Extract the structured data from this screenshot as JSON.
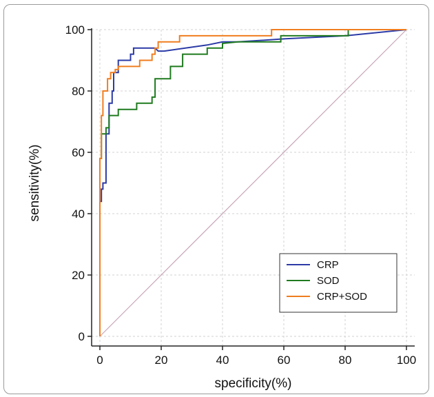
{
  "chart_data": {
    "type": "line",
    "xlabel": "specificity(%)",
    "ylabel": "sensitivity(%)",
    "xlim": [
      0,
      100
    ],
    "ylim": [
      0,
      100
    ],
    "x_ticks": [
      0,
      20,
      40,
      60,
      80,
      100
    ],
    "y_ticks": [
      0,
      20,
      40,
      60,
      80,
      100
    ],
    "grid": true,
    "legend_position": "bottom-right",
    "reference_line": {
      "from": [
        0,
        0
      ],
      "to": [
        100,
        100
      ],
      "color": "#c9a4b8"
    },
    "series": [
      {
        "name": "CRP",
        "color": "#2b3aa6",
        "x": [
          0,
          0,
          0.5,
          0.5,
          1,
          1,
          2,
          2,
          3,
          3,
          4,
          4,
          4.5,
          4.5,
          6,
          6,
          7,
          7,
          10,
          10,
          11,
          11,
          13,
          18,
          19,
          21,
          35,
          40,
          45,
          60,
          80,
          100
        ],
        "y": [
          0,
          44,
          44,
          48,
          48,
          50,
          50,
          66,
          66,
          76,
          76,
          80,
          80,
          86,
          86,
          90,
          90,
          90,
          90,
          92,
          92,
          94,
          94,
          94,
          93,
          93,
          95,
          96,
          96,
          97,
          98,
          100
        ]
      },
      {
        "name": "SOD",
        "color": "#1e7a1e",
        "x": [
          0,
          0,
          0.5,
          0.5,
          2,
          2,
          3,
          3,
          6,
          6,
          8,
          8,
          12,
          12,
          16,
          16,
          17,
          17,
          18,
          18,
          21,
          21,
          23,
          23,
          24.5,
          24.5,
          27,
          27,
          35,
          35,
          37.5,
          37.5,
          40,
          40,
          45,
          58,
          59,
          59,
          65,
          75,
          80,
          81,
          81,
          100
        ],
        "y": [
          0,
          58,
          58,
          66,
          66,
          68,
          68,
          72,
          72,
          74,
          74,
          74,
          74,
          76,
          76,
          76,
          76,
          78,
          78,
          84,
          84,
          84,
          84,
          88,
          88,
          88,
          88,
          92,
          92,
          94,
          94,
          94,
          94,
          95.5,
          96,
          96,
          96,
          98,
          98,
          98,
          98,
          98,
          100,
          100
        ]
      },
      {
        "name": "CRP+SOD",
        "color": "#f07d1e",
        "x": [
          0,
          0,
          0.5,
          0.5,
          1,
          1,
          1.5,
          1.5,
          2.5,
          2.5,
          3.5,
          3.5,
          5,
          5,
          6,
          6,
          8,
          8,
          13,
          13,
          17,
          17,
          18,
          18,
          19,
          19,
          26,
          26,
          56,
          56,
          100
        ],
        "y": [
          0,
          58,
          58,
          72,
          72,
          80,
          80,
          80,
          80,
          84,
          84,
          86,
          86,
          87,
          87,
          88,
          88,
          88,
          88,
          90,
          90,
          92,
          92,
          94,
          94,
          96,
          96,
          98,
          98,
          100,
          100
        ]
      }
    ]
  }
}
